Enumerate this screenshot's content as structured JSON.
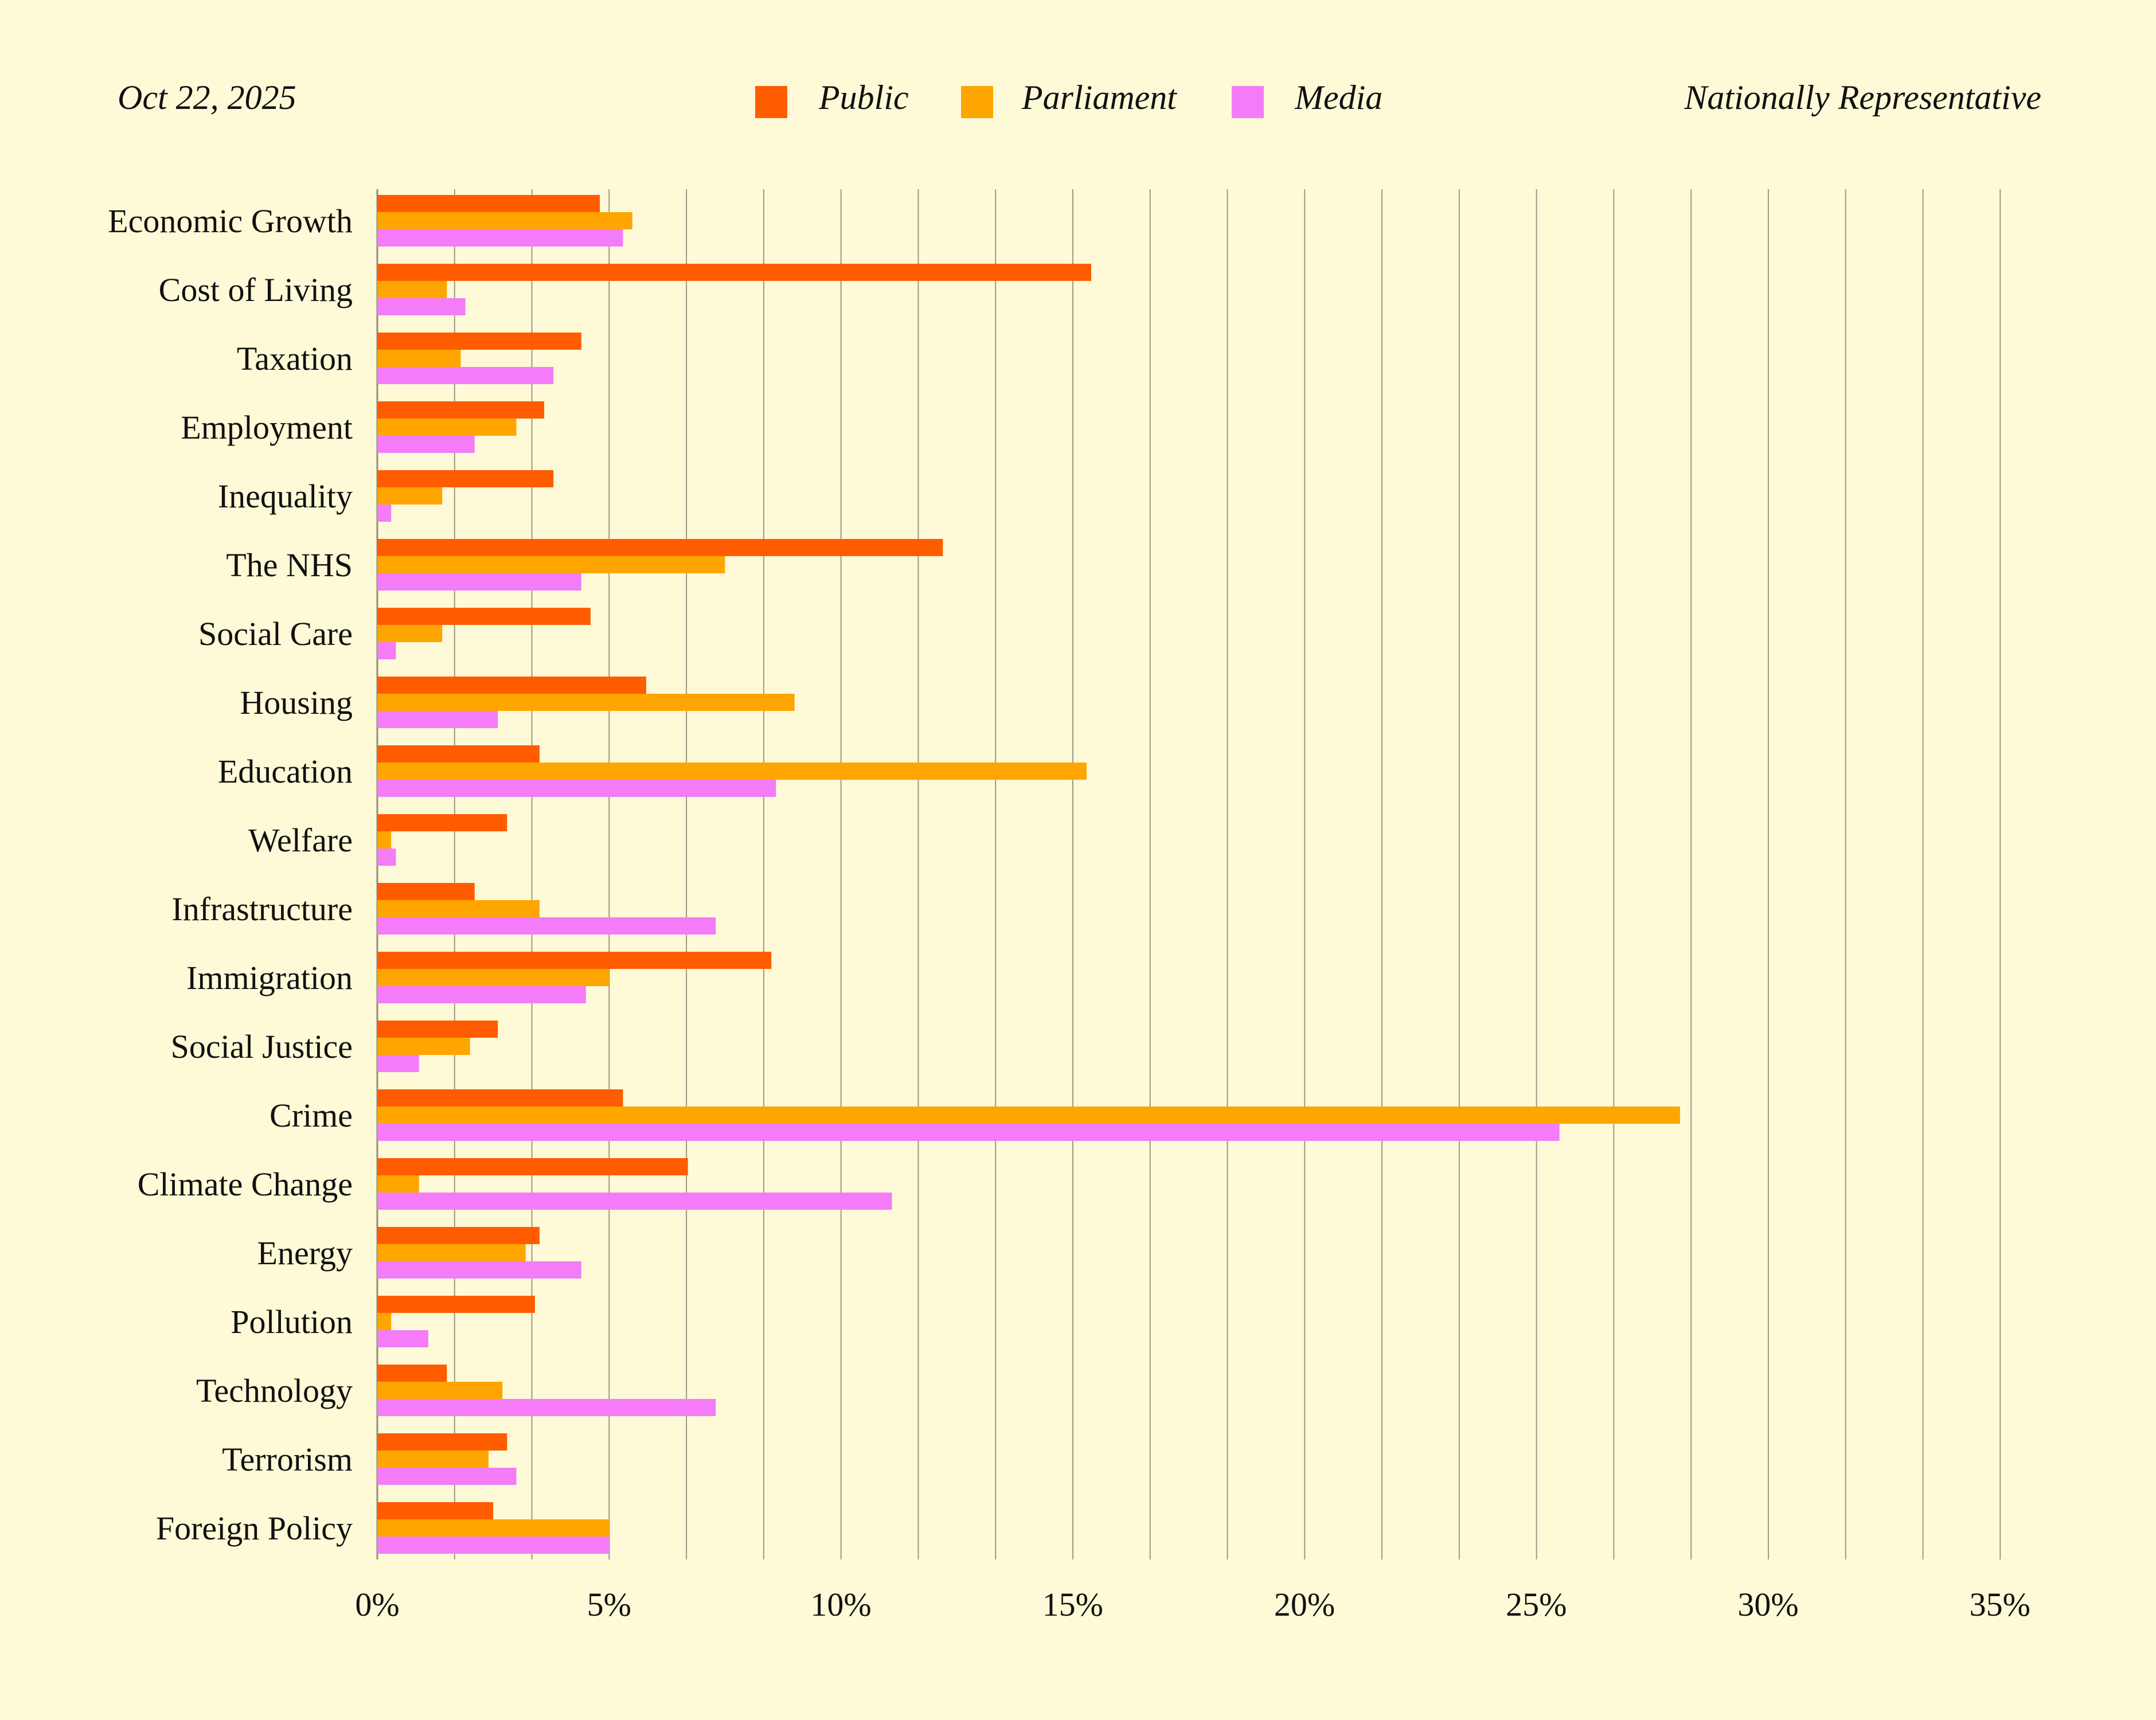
{
  "header": {
    "date": "Oct 22, 2025",
    "sample": "Nationally Representative"
  },
  "legend": {
    "placement": "top-center",
    "items": [
      {
        "label": "Public",
        "color": "#FF5C00"
      },
      {
        "label": "Parliament",
        "color": "#FFA500"
      },
      {
        "label": "Media",
        "color": "#F47CF8"
      }
    ]
  },
  "chart_data": {
    "type": "bar",
    "orientation": "horizontal",
    "categories": [
      "Economic Growth",
      "Cost of Living",
      "Taxation",
      "Employment",
      "Inequality",
      "The NHS",
      "Social Care",
      "Housing",
      "Education",
      "Welfare",
      "Infrastructure",
      "Immigration",
      "Social Justice",
      "Crime",
      "Climate Change",
      "Energy",
      "Pollution",
      "Technology",
      "Terrorism",
      "Foreign Policy"
    ],
    "series": [
      {
        "name": "Public",
        "color": "#FF5C00",
        "values": [
          4.8,
          15.4,
          4.4,
          3.6,
          3.8,
          12.2,
          4.6,
          5.8,
          3.5,
          2.8,
          2.1,
          8.5,
          2.6,
          5.3,
          6.7,
          3.5,
          3.4,
          1.5,
          2.8,
          2.5
        ]
      },
      {
        "name": "Parliament",
        "color": "#FFA500",
        "values": [
          5.5,
          1.5,
          1.8,
          3.0,
          1.4,
          7.5,
          1.4,
          9.0,
          15.3,
          0.3,
          3.5,
          5.0,
          2.0,
          28.1,
          0.9,
          3.2,
          0.3,
          2.7,
          2.4,
          5.0
        ]
      },
      {
        "name": "Media",
        "color": "#F47CF8",
        "values": [
          5.3,
          1.9,
          3.8,
          2.1,
          0.3,
          4.4,
          0.4,
          2.6,
          8.6,
          0.4,
          7.3,
          4.5,
          0.9,
          25.5,
          11.1,
          4.4,
          1.1,
          7.3,
          3.0,
          5.0
        ]
      }
    ],
    "xlim": [
      0,
      35
    ],
    "xticks": [
      0,
      5,
      10,
      15,
      20,
      25,
      30,
      35
    ],
    "xtick_labels": [
      "0%",
      "5%",
      "10%",
      "15%",
      "20%",
      "25%",
      "30%",
      "35%"
    ],
    "minor_gridline_step": 1.667,
    "grid": true,
    "title": "",
    "xlabel": "",
    "ylabel": ""
  }
}
